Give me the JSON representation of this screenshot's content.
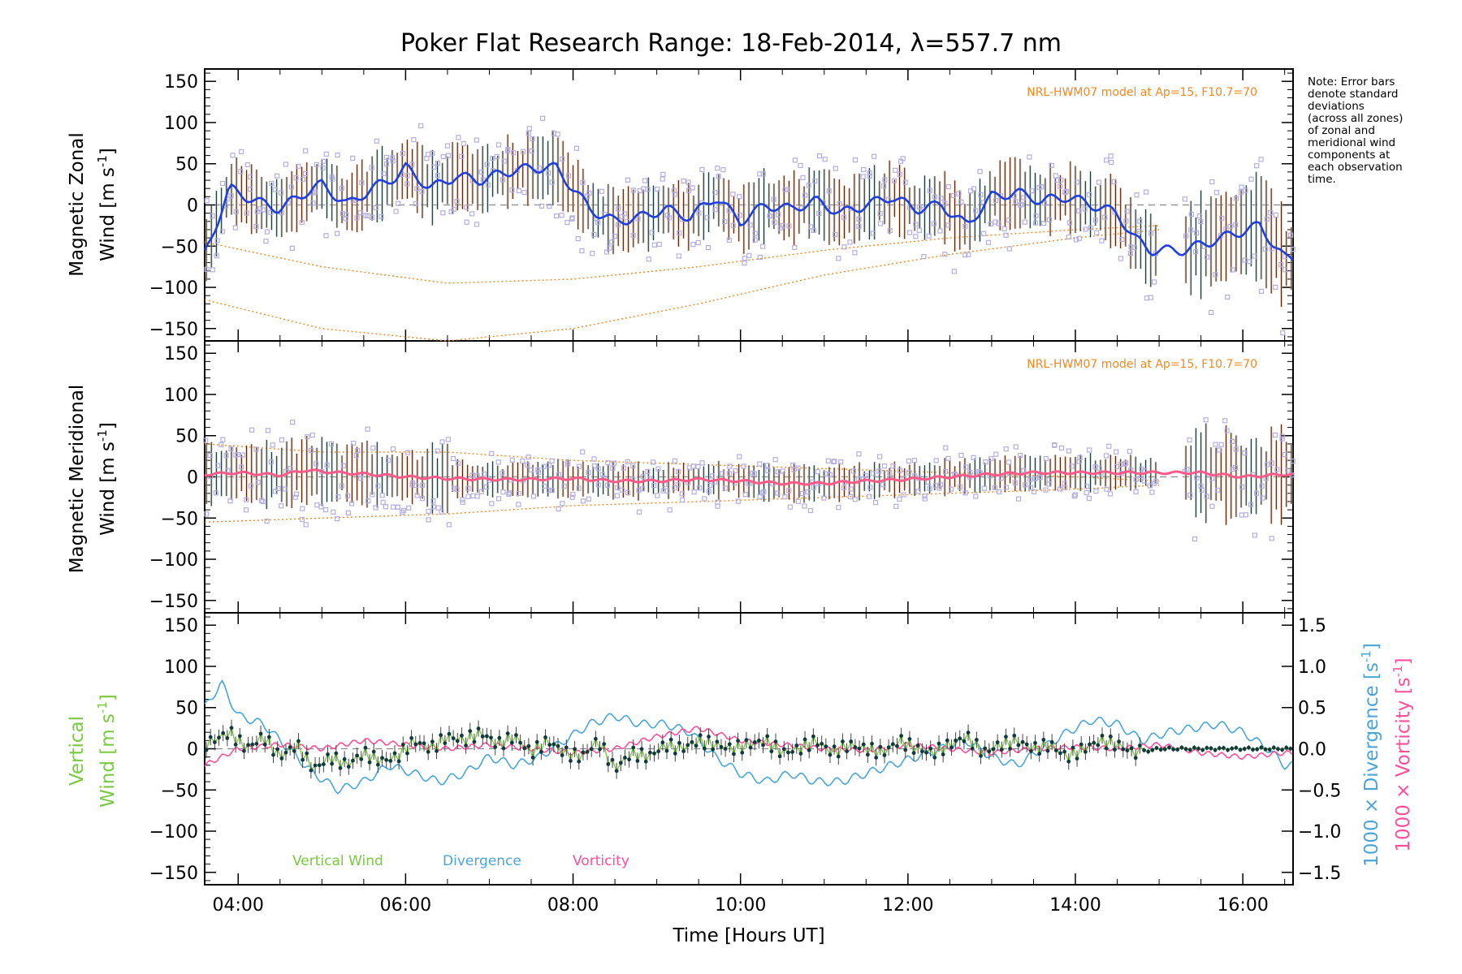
{
  "title": "Poker Flat Research Range: 18-Feb-2014, λ=557.7 nm",
  "note_lines": [
    "Note: Error bars",
    "denote standard",
    "deviations",
    "(across all zones)",
    "of zonal and",
    "meridional wind",
    "components at",
    "each observation",
    "time."
  ],
  "colors": {
    "zonal": "#1f3fe0",
    "meridional": "#ff5a8a",
    "vertical": "#7ac943",
    "divergence": "#4aa6d6",
    "vorticity": "#ff4f9a",
    "model": "#f08a24",
    "scatter": "#b4aee0",
    "errorbar": "#1a3a3a"
  },
  "chart_data": [
    {
      "type": "line",
      "panel": "zonal",
      "ylabel_line1": "Magnetic Zonal",
      "ylabel_line2": "Wind [m s",
      "ylabel_sup": "-1",
      "ylabel_close": "]",
      "ylim": [
        -165,
        165
      ],
      "yticks": [
        -150,
        -100,
        -50,
        0,
        50,
        100,
        150
      ],
      "xlim": [
        3.6,
        16.6
      ],
      "model_label": "NRL-HWM07 model at Ap=15, F10.7=70",
      "grid": false,
      "series": [
        {
          "name": "",
          "x": [
            3.6,
            3.9,
            4.2,
            4.5,
            4.8,
            5.0,
            5.3,
            5.6,
            5.9,
            6.0,
            6.3,
            6.6,
            6.9,
            7.2,
            7.5,
            7.8,
            8.0,
            8.2,
            8.5,
            8.8,
            9.1,
            9.4,
            9.7,
            10.0,
            10.3,
            10.6,
            10.9,
            11.2,
            11.5,
            11.8,
            12.1,
            12.4,
            12.7,
            13.0,
            13.3,
            13.6,
            13.9,
            14.2,
            14.5,
            14.7,
            14.9,
            15.3,
            15.6,
            15.9,
            16.2,
            16.5
          ],
          "y": [
            -60,
            20,
            5,
            -5,
            15,
            25,
            0,
            20,
            35,
            45,
            20,
            35,
            30,
            40,
            45,
            45,
            20,
            -5,
            -20,
            -15,
            -5,
            -15,
            10,
            -20,
            0,
            -5,
            5,
            -10,
            0,
            10,
            -5,
            0,
            -25,
            10,
            15,
            5,
            10,
            0,
            -10,
            -40,
            -55,
            -55,
            -45,
            -35,
            -25,
            -65
          ]
        }
      ],
      "model_curves": [
        {
          "x": [
            3.6,
            5.0,
            6.5,
            8.0,
            9.5,
            11.0,
            12.5,
            14.0,
            15.0
          ],
          "y": [
            -45,
            -75,
            -95,
            -90,
            -75,
            -55,
            -40,
            -30,
            -25
          ]
        },
        {
          "x": [
            3.6,
            5.0,
            6.5,
            8.0,
            9.5,
            11.0,
            12.5,
            14.0,
            15.0
          ],
          "y": [
            -115,
            -150,
            -165,
            -150,
            -120,
            -85,
            -60,
            -40,
            -30
          ]
        }
      ]
    },
    {
      "type": "line",
      "panel": "meridional",
      "ylabel_line1": "Magnetic Meridional",
      "ylabel_line2": "Wind [m s",
      "ylabel_sup": "-1",
      "ylabel_close": "]",
      "ylim": [
        -165,
        165
      ],
      "yticks": [
        -150,
        -100,
        -50,
        0,
        50,
        100,
        150
      ],
      "xlim": [
        3.6,
        16.6
      ],
      "model_label": "NRL-HWM07 model at Ap=15, F10.7=70",
      "grid": false,
      "series": [
        {
          "name": "",
          "x": [
            3.6,
            4.0,
            4.5,
            4.8,
            5.2,
            5.6,
            6.0,
            6.5,
            7.0,
            7.5,
            8.0,
            8.5,
            9.0,
            9.5,
            10.0,
            10.5,
            11.0,
            11.5,
            12.0,
            12.5,
            13.0,
            13.5,
            14.0,
            14.5,
            15.0,
            15.5,
            16.0,
            16.5
          ],
          "y": [
            3,
            5,
            2,
            8,
            5,
            3,
            0,
            -2,
            -3,
            -3,
            -2,
            -5,
            -5,
            -3,
            -5,
            -8,
            -8,
            -5,
            -3,
            0,
            3,
            5,
            5,
            5,
            5,
            5,
            0,
            3
          ]
        }
      ],
      "model_curves": [
        {
          "x": [
            3.6,
            5.0,
            6.5,
            8.0,
            9.5,
            11.0,
            12.5,
            14.0,
            15.0
          ],
          "y": [
            40,
            30,
            30,
            20,
            15,
            10,
            5,
            0,
            -5
          ]
        },
        {
          "x": [
            3.6,
            5.0,
            6.5,
            8.0,
            9.5,
            11.0,
            12.5,
            14.0,
            15.0
          ],
          "y": [
            -55,
            -50,
            -45,
            -35,
            -30,
            -25,
            -20,
            -15,
            -10
          ]
        }
      ]
    },
    {
      "type": "line",
      "panel": "vertical",
      "ylabel_line1": "Vertical",
      "ylabel_line2": "Wind [m s",
      "ylabel_sup": "-1",
      "ylabel_close": "]",
      "ylim": [
        -165,
        165
      ],
      "yticks": [
        -150,
        -100,
        -50,
        0,
        50,
        100,
        150
      ],
      "xlim": [
        3.6,
        16.6
      ],
      "right_axis": {
        "ylim": [
          -1.65,
          1.65
        ],
        "yticks": [
          -1.5,
          -1.0,
          -0.5,
          0.0,
          0.5,
          1.0,
          1.5
        ],
        "ytick_labels": [
          "−1.5",
          "−1.0",
          "−0.5",
          "0.0",
          "0.5",
          "1.0",
          "1.5"
        ],
        "label_div": "1000 × Divergence [s",
        "label_vor": "1000 × Vorticity [s",
        "label_sup": "-1",
        "label_close": "]"
      },
      "legend": [
        "Vertical Wind",
        "Divergence",
        "Vorticity"
      ],
      "grid": false,
      "series": [
        {
          "name": "Vertical Wind",
          "x": [
            3.6,
            3.9,
            4.1,
            4.3,
            4.5,
            4.7,
            4.9,
            5.1,
            5.3,
            5.5,
            5.7,
            5.9,
            6.1,
            6.3,
            6.5,
            6.7,
            6.9,
            7.1,
            7.3,
            7.5,
            7.7,
            7.9,
            8.1,
            8.3,
            8.5,
            8.7,
            8.9,
            9.1,
            9.3,
            9.5,
            9.7,
            9.9,
            10.1,
            10.3,
            10.5,
            10.7,
            10.9,
            11.1,
            11.3,
            11.5,
            11.7,
            11.9,
            12.1,
            12.3,
            12.5,
            12.7,
            12.9,
            13.1,
            13.3,
            13.5,
            13.7,
            13.9,
            14.1,
            14.3,
            14.5,
            14.7,
            15.0,
            15.3,
            15.6,
            15.9,
            16.2,
            16.5
          ],
          "y": [
            5,
            20,
            0,
            15,
            -10,
            5,
            -25,
            -10,
            -20,
            -5,
            -15,
            -10,
            10,
            0,
            15,
            10,
            20,
            5,
            15,
            -5,
            10,
            -5,
            -10,
            10,
            -25,
            -5,
            -10,
            5,
            0,
            10,
            5,
            0,
            5,
            10,
            -5,
            0,
            10,
            -5,
            5,
            0,
            -5,
            10,
            0,
            -5,
            5,
            15,
            -5,
            5,
            10,
            0,
            5,
            -10,
            0,
            10,
            5,
            -5,
            0,
            0,
            0,
            0,
            0,
            0
          ]
        },
        {
          "name": "Divergence",
          "x": [
            3.6,
            3.8,
            4.0,
            4.3,
            4.6,
            4.9,
            5.2,
            5.5,
            5.8,
            6.1,
            6.4,
            6.7,
            7.0,
            7.3,
            7.6,
            7.9,
            8.2,
            8.5,
            8.8,
            9.1,
            9.4,
            9.7,
            10.0,
            10.3,
            10.6,
            10.9,
            11.2,
            11.5,
            11.8,
            12.1,
            12.4,
            12.7,
            13.0,
            13.3,
            13.6,
            13.9,
            14.2,
            14.5,
            14.8,
            15.1,
            15.4,
            15.7,
            16.0,
            16.3,
            16.5
          ],
          "y": [
            0.5,
            0.8,
            0.4,
            0.3,
            0.0,
            -0.3,
            -0.5,
            -0.4,
            -0.2,
            -0.3,
            -0.4,
            -0.3,
            -0.1,
            -0.2,
            -0.1,
            0.1,
            0.3,
            0.4,
            0.3,
            0.3,
            0.2,
            -0.1,
            -0.3,
            -0.4,
            -0.3,
            -0.4,
            -0.4,
            -0.3,
            -0.2,
            -0.1,
            0.0,
            0.1,
            -0.1,
            -0.2,
            0.0,
            0.2,
            0.35,
            0.3,
            0.1,
            0.2,
            0.25,
            0.3,
            0.2,
            0.0,
            -0.2
          ]
        },
        {
          "name": "Vorticity",
          "x": [
            3.6,
            4.0,
            4.5,
            5.0,
            5.5,
            6.0,
            6.5,
            7.0,
            7.5,
            8.0,
            8.5,
            9.0,
            9.5,
            10.0,
            10.5,
            11.0,
            11.5,
            12.0,
            12.5,
            13.0,
            13.5,
            14.0,
            14.5,
            15.0,
            15.5,
            16.0,
            16.5
          ],
          "y": [
            -0.2,
            0.0,
            0.05,
            0.0,
            0.1,
            0.05,
            0.0,
            0.05,
            0.0,
            -0.05,
            0.0,
            0.15,
            0.25,
            0.1,
            0.05,
            0.0,
            -0.02,
            0.05,
            0.0,
            -0.05,
            0.0,
            0.02,
            0.0,
            0.05,
            -0.05,
            -0.1,
            -0.05
          ]
        }
      ]
    }
  ],
  "xaxis": {
    "label": "Time [Hours UT]",
    "ticks": [
      4,
      6,
      8,
      10,
      12,
      14,
      16
    ],
    "tick_labels": [
      "04:00",
      "06:00",
      "08:00",
      "10:00",
      "12:00",
      "14:00",
      "16:00"
    ]
  }
}
